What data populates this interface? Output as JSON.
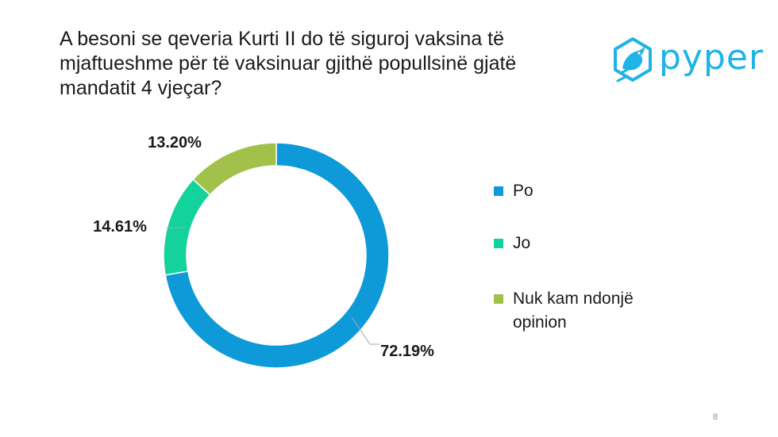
{
  "title_lines": [
    "A besoni se qeveria Kurti II do të siguroj vaksina të",
    "mjaftueshme për të vaksinuar gjithë popullsinë gjatë",
    "mandatit 4 vjeçar?"
  ],
  "logo": {
    "text": "pyper",
    "icon": "bird-icon",
    "color": "#1fb3e6"
  },
  "page_number": "8",
  "chart_data": {
    "type": "pie",
    "variant": "donut",
    "title": "A besoni se qeveria Kurti II do të siguroj vaksina të mjaftueshme për të vaksinuar gjithë popullsinë gjatë mandatit 4 vjeçar?",
    "categories": [
      "Po",
      "Jo",
      "Nuk kam ndonjë opinion"
    ],
    "values": [
      72.19,
      14.61,
      13.2
    ],
    "data_labels": [
      "72.19%",
      "14.61%",
      "13.20%"
    ],
    "colors": [
      "#0e9ad8",
      "#14d29c",
      "#a2c14a"
    ],
    "legend_position": "right",
    "unit": "%"
  }
}
